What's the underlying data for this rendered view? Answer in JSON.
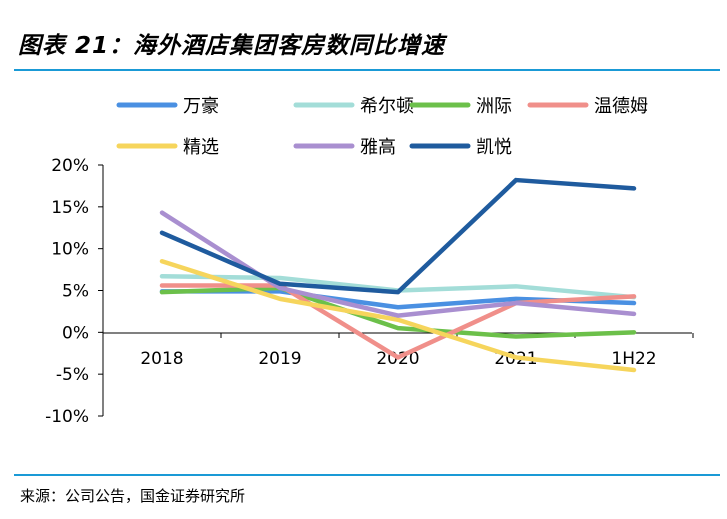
{
  "header": {
    "title": "图表 21：海外酒店集团客房数同比增速"
  },
  "footer": {
    "source": "来源：公司公告，国金证券研究所"
  },
  "chart_data": {
    "type": "line",
    "title": "",
    "xlabel": "",
    "ylabel": "",
    "categories": [
      "2018",
      "2019",
      "2020",
      "2021",
      "1H22"
    ],
    "y_tick_labels": [
      "20%",
      "15%",
      "10%",
      "5%",
      "0%",
      "-5%",
      "-10%"
    ],
    "ylim": [
      -10,
      20
    ],
    "y_unit": "%",
    "grid": false,
    "legend_position": "top",
    "series": [
      {
        "name": "万豪",
        "color": "#4a90e2",
        "values": [
          4.9,
          4.9,
          3.0,
          4.0,
          3.5
        ]
      },
      {
        "name": "希尔顿",
        "color": "#a3ddd8",
        "values": [
          6.7,
          6.5,
          5.0,
          5.5,
          4.2
        ]
      },
      {
        "name": "洲际",
        "color": "#6cc04a",
        "values": [
          4.8,
          5.3,
          0.5,
          -0.5,
          0.0
        ]
      },
      {
        "name": "温德姆",
        "color": "#f08f8a",
        "values": [
          5.6,
          5.6,
          -3.0,
          3.5,
          4.3
        ]
      },
      {
        "name": "精选",
        "color": "#f6d55c",
        "values": [
          8.5,
          4.0,
          1.5,
          -3.0,
          -4.5
        ]
      },
      {
        "name": "雅高",
        "color": "#a98fd0",
        "values": [
          14.3,
          5.3,
          2.0,
          3.5,
          2.2
        ]
      },
      {
        "name": "凯悦",
        "color": "#1f5b9e",
        "values": [
          11.9,
          5.8,
          4.8,
          18.2,
          17.2
        ]
      }
    ]
  }
}
